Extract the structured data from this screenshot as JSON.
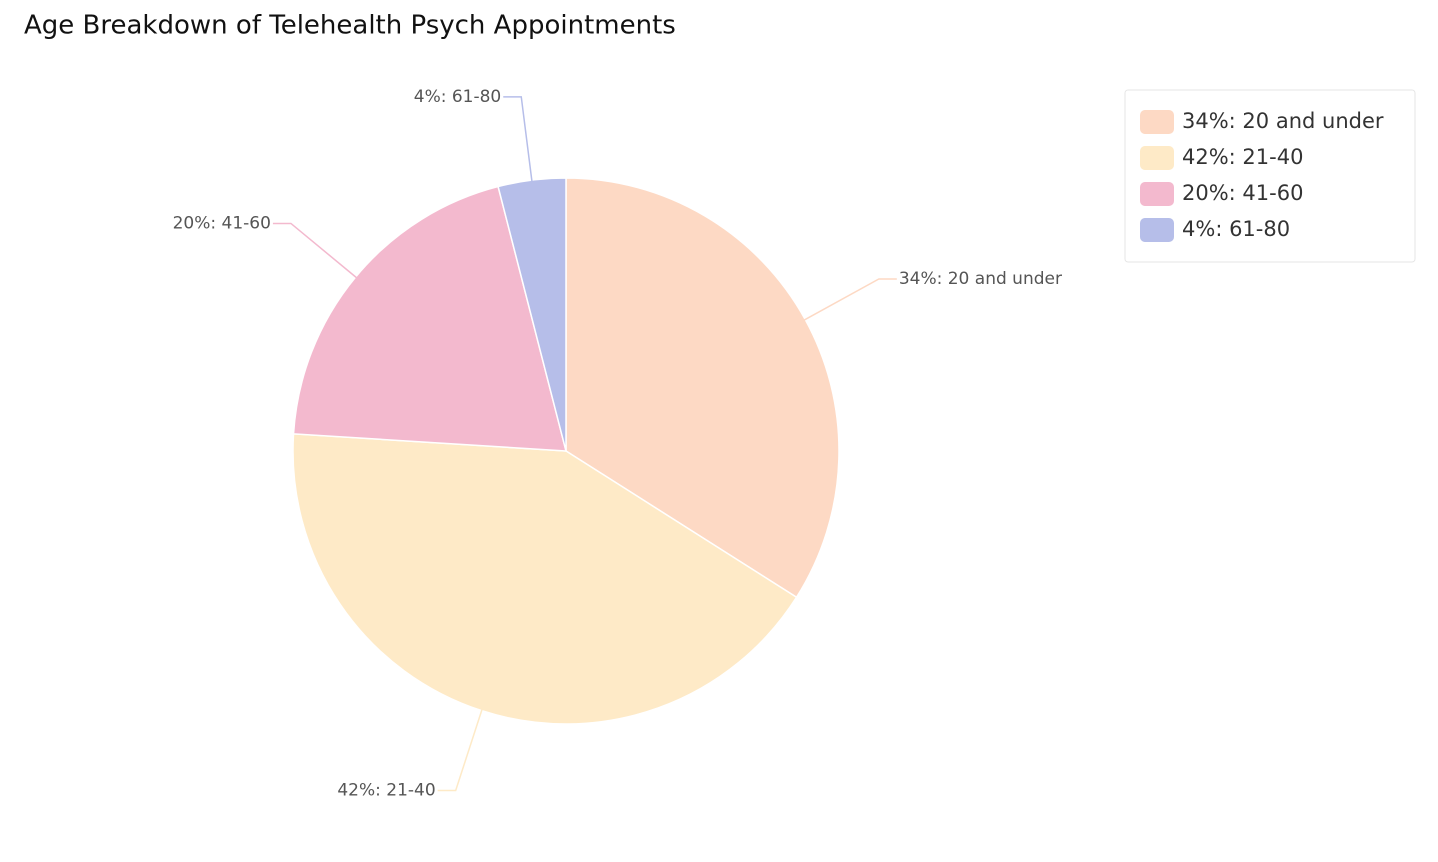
{
  "chart_data": {
    "type": "pie",
    "title": "Age Breakdown of Telehealth Psych Appointments",
    "categories": [
      "34%: 20 and under",
      "42%: 21-40",
      "20%: 41-60",
      "4%: 61-80"
    ],
    "values": [
      34,
      42,
      20,
      4
    ],
    "colors": [
      "#fdd9c4",
      "#feeac7",
      "#f3b9ce",
      "#b6bee9"
    ],
    "legend": "top-right"
  }
}
